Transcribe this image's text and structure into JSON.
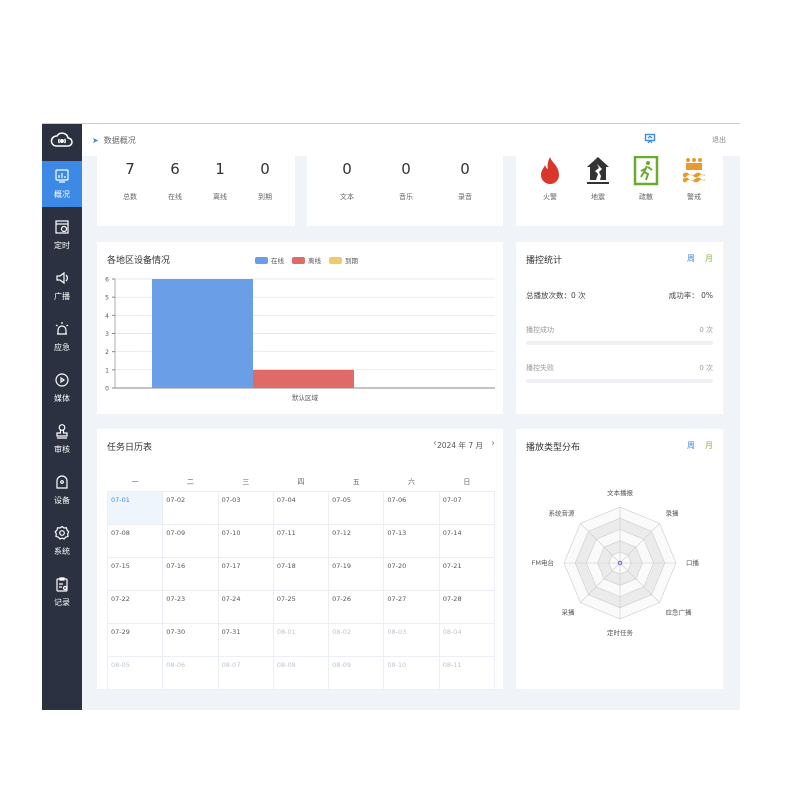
{
  "header": {
    "breadcrumb": "数据概况",
    "exit": "退出"
  },
  "sidebar": {
    "items": [
      {
        "label": "概况",
        "icon": "monitor-chart-icon",
        "active": true
      },
      {
        "label": "定时",
        "icon": "calendar-clock-icon"
      },
      {
        "label": "广播",
        "icon": "speaker-icon"
      },
      {
        "label": "应急",
        "icon": "alarm-light-icon"
      },
      {
        "label": "媒体",
        "icon": "media-disc-icon"
      },
      {
        "label": "审核",
        "icon": "stamp-icon"
      },
      {
        "label": "设备",
        "icon": "device-icon"
      },
      {
        "label": "系统",
        "icon": "gear-icon"
      },
      {
        "label": "记录",
        "icon": "clipboard-icon"
      }
    ]
  },
  "devices": [
    {
      "value": "7",
      "label": "总数"
    },
    {
      "value": "6",
      "label": "在线"
    },
    {
      "value": "1",
      "label": "离线"
    },
    {
      "value": "0",
      "label": "到期"
    }
  ],
  "media": [
    {
      "value": "0",
      "label": "文本"
    },
    {
      "value": "0",
      "label": "音乐"
    },
    {
      "value": "0",
      "label": "录音"
    }
  ],
  "alarms": [
    {
      "label": "火警",
      "icon": "fire-icon",
      "color": "#d9372b"
    },
    {
      "label": "地震",
      "icon": "earthquake-icon",
      "color": "#333333"
    },
    {
      "label": "疏散",
      "icon": "evacuation-exit-icon",
      "color": "#6aaa2f"
    },
    {
      "label": "警戒",
      "icon": "cordon-icon",
      "color": "#e89a2c"
    }
  ],
  "chart_data": {
    "type": "bar",
    "title": "各地区设备情况",
    "categories": [
      "默认区域"
    ],
    "series": [
      {
        "name": "在线",
        "values": [
          6
        ],
        "color": "#6a9ee6"
      },
      {
        "name": "离线",
        "values": [
          1
        ],
        "color": "#e06b66"
      },
      {
        "name": "到期",
        "values": [
          0
        ],
        "color": "#f5c86a"
      }
    ],
    "ylim": [
      0,
      6
    ],
    "yticks": [
      "0",
      "1",
      "2",
      "3",
      "4",
      "5",
      "6"
    ],
    "legend": "top-center",
    "grid": true
  },
  "playstats": {
    "title": "播控统计",
    "week": "周",
    "month": "月",
    "total": "总播放次数：0 次",
    "rate": "成功率： 0%",
    "success_label": "播控成功",
    "success_value": "0 次",
    "success_fraction": 0,
    "fail_label": "播控失败",
    "fail_value": "0 次",
    "fail_fraction": 0
  },
  "calendar": {
    "title": "任务日历表",
    "month": "2024 年 7 月",
    "prev": "‹",
    "next": "›",
    "weekdays": [
      "一",
      "二",
      "三",
      "四",
      "五",
      "六",
      "日"
    ],
    "rows": [
      [
        "07-01",
        "07-02",
        "07-03",
        "07-04",
        "07-05",
        "07-06",
        "07-07"
      ],
      [
        "07-08",
        "07-09",
        "07-10",
        "07-11",
        "07-12",
        "07-13",
        "07-14"
      ],
      [
        "07-15",
        "07-16",
        "07-17",
        "07-18",
        "07-19",
        "07-20",
        "07-21"
      ],
      [
        "07-22",
        "07-23",
        "07-24",
        "07-25",
        "07-26",
        "07-27",
        "07-28"
      ],
      [
        "07-29",
        "07-30",
        "07-31",
        "08-01",
        "08-02",
        "08-03",
        "08-04"
      ],
      [
        "08-05",
        "08-06",
        "08-07",
        "08-08",
        "08-09",
        "08-10",
        "08-11"
      ]
    ]
  },
  "radar": {
    "title": "播放类型分布",
    "week": "周",
    "month": "月",
    "indicators": [
      "文本播报",
      "录播",
      "口播",
      "应急广播",
      "定时任务",
      "采播",
      "FM电台",
      "系统音源"
    ],
    "values": [
      0,
      0,
      0,
      0,
      0,
      0,
      0,
      0
    ]
  }
}
